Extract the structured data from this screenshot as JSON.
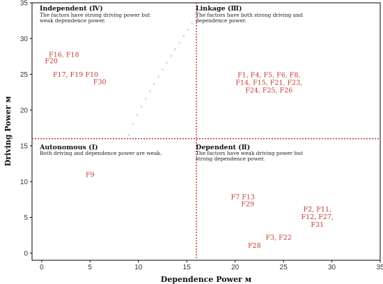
{
  "chart_data": {
    "type": "scatter",
    "xlabel": "Dependence Power м",
    "ylabel": "Driving Power м",
    "xlim": [
      -1,
      35
    ],
    "ylim": [
      -1,
      35
    ],
    "xticks": [
      "0",
      "5",
      "10",
      "15",
      "20",
      "25",
      "30",
      "35"
    ],
    "yticks": [
      "0",
      "5",
      "10",
      "15",
      "20",
      "25",
      "30",
      "35"
    ],
    "xtick_values": [
      0,
      5,
      10,
      15,
      20,
      25,
      30,
      35
    ],
    "ytick_values": [
      0,
      5,
      10,
      15,
      20,
      25,
      30,
      35
    ],
    "divider_x": 16,
    "divider_y": 16,
    "divider_color": "#c0392b",
    "label_color": "#c0392b",
    "quadrants": [
      {
        "key": "independent",
        "title": "Independent (Ⅳ)",
        "description": [
          "The factors have strong driving power but",
          "weak dependence power."
        ]
      },
      {
        "key": "linkage",
        "title": "Linkage (Ⅲ)",
        "description": [
          "The factors have both strong driving and",
          "dependence power."
        ]
      },
      {
        "key": "autonomous",
        "title": "Autonomous (Ⅰ)",
        "description": [
          "Both driving and dependence power are weak."
        ]
      },
      {
        "key": "dependent",
        "title": "Dependent (Ⅱ)",
        "description": [
          "The factors have weak driving power but",
          "strong dependence power."
        ]
      }
    ],
    "points": [
      {
        "x": 2.3,
        "y": 27.8,
        "lines": [
          "F16, F18"
        ]
      },
      {
        "x": 1.0,
        "y": 26.9,
        "lines": [
          "F20"
        ]
      },
      {
        "x": 3.5,
        "y": 25.0,
        "lines": [
          "F17, F19 F10"
        ]
      },
      {
        "x": 6.0,
        "y": 24.0,
        "lines": [
          "F30"
        ]
      },
      {
        "x": 23.5,
        "y": 23.9,
        "lines": [
          "F1, F4, F5, F6, F8,",
          "F14, F15, F21, F23,",
          "F24, F25, F26"
        ]
      },
      {
        "x": 5.0,
        "y": 11.0,
        "lines": [
          "F9"
        ]
      },
      {
        "x": 20.8,
        "y": 7.9,
        "lines": [
          "F7 F13"
        ]
      },
      {
        "x": 21.3,
        "y": 6.9,
        "lines": [
          "F29"
        ]
      },
      {
        "x": 28.5,
        "y": 5.1,
        "lines": [
          "F2, F11,",
          "F12, F27,",
          "F31"
        ]
      },
      {
        "x": 24.5,
        "y": 2.2,
        "lines": [
          "F3, F22"
        ]
      },
      {
        "x": 22.0,
        "y": 1.1,
        "lines": [
          "F28"
        ]
      }
    ]
  }
}
